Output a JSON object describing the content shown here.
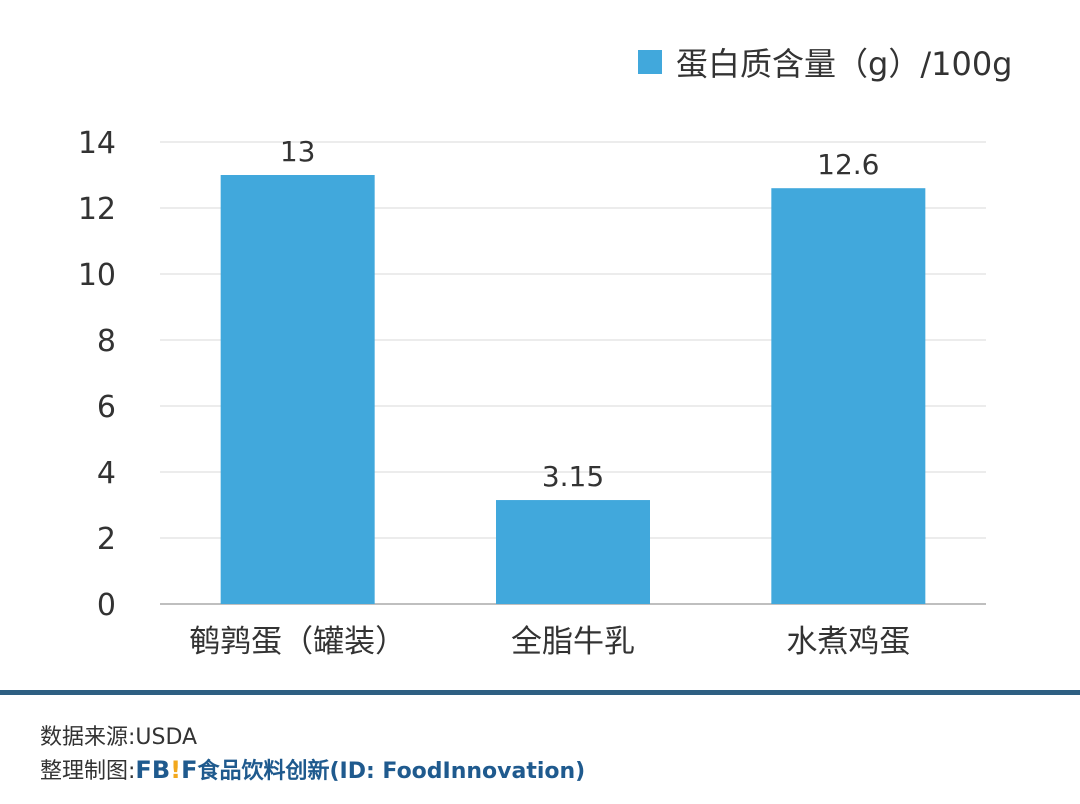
{
  "chart_data": {
    "type": "bar",
    "categories": [
      "鹌鹑蛋（罐装）",
      "全脂牛乳",
      "水煮鸡蛋"
    ],
    "series": [
      {
        "name": "蛋白质含量（g）/100g",
        "values": [
          13,
          3.15,
          12.6
        ],
        "color": "#41a8dc"
      }
    ],
    "value_labels": [
      "13",
      "3.15",
      "12.6"
    ],
    "ylim": [
      0,
      14
    ],
    "yticks": [
      0,
      2,
      4,
      6,
      8,
      10,
      12,
      14
    ],
    "grid": true,
    "legend_position": "top-right",
    "title": "",
    "xlabel": "",
    "ylabel": ""
  },
  "legend": {
    "label": "蛋白质含量（g）/100g"
  },
  "footer": {
    "source": "数据来源:USDA",
    "editor_prefix": "整理制图:",
    "brand_fb": "FB",
    "brand_bang": "!",
    "brand_f": "F",
    "brand_name": "食品饮料创新(ID: FoodInnovation)"
  },
  "colors": {
    "bar": "#41a8dc",
    "grid": "#d9d9d9",
    "axis": "#bfbfbf",
    "footer_line": "#2e5f82"
  }
}
